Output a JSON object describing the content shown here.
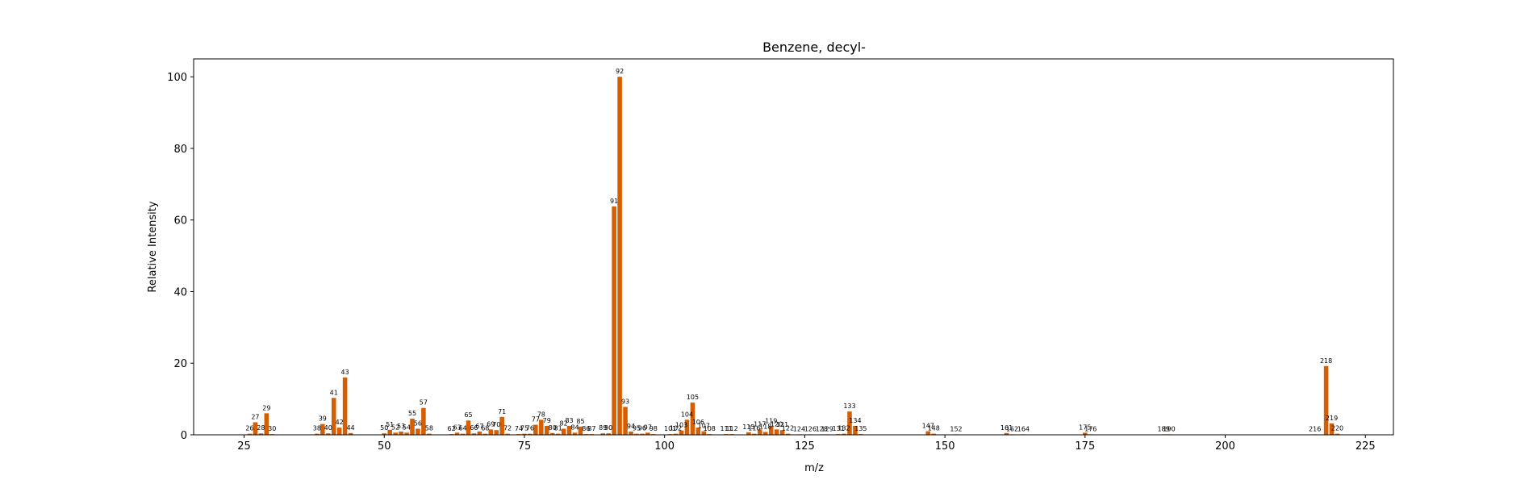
{
  "chart_data": {
    "type": "bar",
    "title": "Benzene, decyl-",
    "xlabel": "m/z",
    "ylabel": "Relative Intensity",
    "xlim": [
      16,
      230
    ],
    "ylim": [
      0,
      105
    ],
    "xticks": [
      25,
      50,
      75,
      100,
      125,
      150,
      175,
      200,
      225
    ],
    "yticks": [
      0,
      20,
      40,
      60,
      80,
      100
    ],
    "bar_color": "#d55e00",
    "grid": false,
    "peaks": [
      {
        "mz": 26,
        "intensity": 0.3
      },
      {
        "mz": 27,
        "intensity": 3.5
      },
      {
        "mz": 28,
        "intensity": 0.4
      },
      {
        "mz": 29,
        "intensity": 6.0
      },
      {
        "mz": 30,
        "intensity": 0.2
      },
      {
        "mz": 38,
        "intensity": 0.3
      },
      {
        "mz": 39,
        "intensity": 3.0
      },
      {
        "mz": 40,
        "intensity": 0.4
      },
      {
        "mz": 41,
        "intensity": 10.3
      },
      {
        "mz": 42,
        "intensity": 2.0
      },
      {
        "mz": 43,
        "intensity": 16.0
      },
      {
        "mz": 44,
        "intensity": 0.5
      },
      {
        "mz": 50,
        "intensity": 0.4
      },
      {
        "mz": 51,
        "intensity": 1.4
      },
      {
        "mz": 52,
        "intensity": 0.6
      },
      {
        "mz": 53,
        "intensity": 0.9
      },
      {
        "mz": 54,
        "intensity": 0.6
      },
      {
        "mz": 55,
        "intensity": 4.5
      },
      {
        "mz": 56,
        "intensity": 1.7
      },
      {
        "mz": 57,
        "intensity": 7.5
      },
      {
        "mz": 58,
        "intensity": 0.3
      },
      {
        "mz": 62,
        "intensity": 0.2
      },
      {
        "mz": 63,
        "intensity": 0.6
      },
      {
        "mz": 64,
        "intensity": 0.3
      },
      {
        "mz": 65,
        "intensity": 4.0
      },
      {
        "mz": 66,
        "intensity": 0.4
      },
      {
        "mz": 67,
        "intensity": 0.9
      },
      {
        "mz": 68,
        "intensity": 0.3
      },
      {
        "mz": 69,
        "intensity": 1.5
      },
      {
        "mz": 70,
        "intensity": 1.3
      },
      {
        "mz": 71,
        "intensity": 5.0
      },
      {
        "mz": 72,
        "intensity": 0.3
      },
      {
        "mz": 74,
        "intensity": 0.2
      },
      {
        "mz": 75,
        "intensity": 0.3
      },
      {
        "mz": 76,
        "intensity": 0.3
      },
      {
        "mz": 77,
        "intensity": 2.8
      },
      {
        "mz": 78,
        "intensity": 4.2
      },
      {
        "mz": 79,
        "intensity": 2.5
      },
      {
        "mz": 80,
        "intensity": 0.5
      },
      {
        "mz": 81,
        "intensity": 0.3
      },
      {
        "mz": 82,
        "intensity": 1.7
      },
      {
        "mz": 83,
        "intensity": 2.5
      },
      {
        "mz": 84,
        "intensity": 0.6
      },
      {
        "mz": 85,
        "intensity": 2.3
      },
      {
        "mz": 86,
        "intensity": 0.2
      },
      {
        "mz": 87,
        "intensity": 0.2
      },
      {
        "mz": 89,
        "intensity": 0.4
      },
      {
        "mz": 90,
        "intensity": 0.4
      },
      {
        "mz": 91,
        "intensity": 63.8
      },
      {
        "mz": 92,
        "intensity": 100.0
      },
      {
        "mz": 93,
        "intensity": 7.8
      },
      {
        "mz": 94,
        "intensity": 0.9
      },
      {
        "mz": 95,
        "intensity": 0.3
      },
      {
        "mz": 96,
        "intensity": 0.3
      },
      {
        "mz": 97,
        "intensity": 0.6
      },
      {
        "mz": 98,
        "intensity": 0.2
      },
      {
        "mz": 101,
        "intensity": 0.2
      },
      {
        "mz": 102,
        "intensity": 0.3
      },
      {
        "mz": 103,
        "intensity": 1.2
      },
      {
        "mz": 104,
        "intensity": 4.2
      },
      {
        "mz": 105,
        "intensity": 9.0
      },
      {
        "mz": 106,
        "intensity": 2.0
      },
      {
        "mz": 107,
        "intensity": 1.0
      },
      {
        "mz": 108,
        "intensity": 0.2
      },
      {
        "mz": 111,
        "intensity": 0.2
      },
      {
        "mz": 112,
        "intensity": 0.2
      },
      {
        "mz": 115,
        "intensity": 0.7
      },
      {
        "mz": 116,
        "intensity": 0.3
      },
      {
        "mz": 117,
        "intensity": 1.5
      },
      {
        "mz": 118,
        "intensity": 0.8
      },
      {
        "mz": 119,
        "intensity": 2.4
      },
      {
        "mz": 120,
        "intensity": 1.5
      },
      {
        "mz": 121,
        "intensity": 1.3
      },
      {
        "mz": 122,
        "intensity": 0.3
      },
      {
        "mz": 124,
        "intensity": 0.1
      },
      {
        "mz": 126,
        "intensity": 0.1
      },
      {
        "mz": 128,
        "intensity": 0.1
      },
      {
        "mz": 129,
        "intensity": 0.1
      },
      {
        "mz": 131,
        "intensity": 0.2
      },
      {
        "mz": 132,
        "intensity": 0.3
      },
      {
        "mz": 133,
        "intensity": 6.5
      },
      {
        "mz": 134,
        "intensity": 2.5
      },
      {
        "mz": 135,
        "intensity": 0.2
      },
      {
        "mz": 147,
        "intensity": 1.0
      },
      {
        "mz": 148,
        "intensity": 0.3
      },
      {
        "mz": 152,
        "intensity": 0.1
      },
      {
        "mz": 161,
        "intensity": 0.5
      },
      {
        "mz": 162,
        "intensity": 0.1
      },
      {
        "mz": 164,
        "intensity": 0.1
      },
      {
        "mz": 175,
        "intensity": 0.6
      },
      {
        "mz": 176,
        "intensity": 0.1
      },
      {
        "mz": 189,
        "intensity": 0.1
      },
      {
        "mz": 190,
        "intensity": 0.1
      },
      {
        "mz": 216,
        "intensity": 0.1
      },
      {
        "mz": 218,
        "intensity": 19.2
      },
      {
        "mz": 219,
        "intensity": 3.2
      },
      {
        "mz": 220,
        "intensity": 0.3
      }
    ]
  }
}
